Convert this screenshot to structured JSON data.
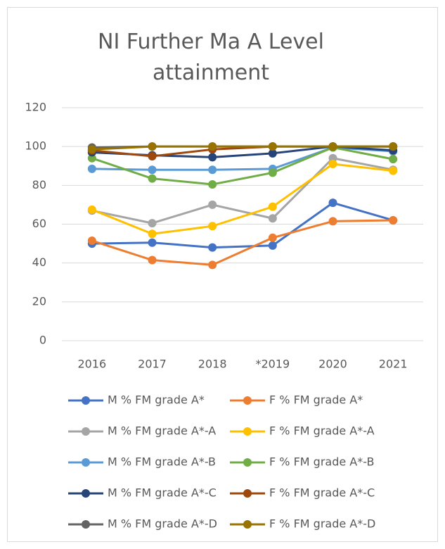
{
  "chart_data": {
    "type": "line",
    "title": "NI Further Ma A Level attainment",
    "categories": [
      "2016",
      "2017",
      "2018",
      "*2019",
      "2020",
      "2021"
    ],
    "ylim": [
      0,
      120
    ],
    "yticks": [
      0,
      20,
      40,
      60,
      80,
      100,
      120
    ],
    "grid": true,
    "series": [
      {
        "name": "M % FM grade A*",
        "color": "#4472c4",
        "values": [
          50,
          50.5,
          48,
          49,
          71,
          62
        ]
      },
      {
        "name": "F % FM grade A*",
        "color": "#ed7d31",
        "values": [
          51.5,
          41.5,
          39,
          53,
          61.5,
          62
        ]
      },
      {
        "name": "M % FM grade A*-A",
        "color": "#a5a5a5",
        "values": [
          67,
          60.5,
          70,
          63,
          94,
          88
        ]
      },
      {
        "name": "F % FM grade A*-A",
        "color": "#ffc000",
        "values": [
          67.5,
          55,
          59,
          69,
          91,
          87.5
        ]
      },
      {
        "name": "M % FM grade A*-B",
        "color": "#5b9bd5",
        "values": [
          88.5,
          88,
          88,
          88.5,
          99.5,
          97.5
        ]
      },
      {
        "name": "F % FM grade A*-B",
        "color": "#70ad47",
        "values": [
          94,
          83.5,
          80.5,
          86.5,
          99.5,
          93.5
        ]
      },
      {
        "name": "M % FM grade A*-C",
        "color": "#264478",
        "values": [
          97,
          95.5,
          94.5,
          96.5,
          100,
          98
        ]
      },
      {
        "name": "F % FM grade A*-C",
        "color": "#9e480e",
        "values": [
          98,
          95,
          98.5,
          100,
          100,
          100
        ]
      },
      {
        "name": "M % FM grade A*-D",
        "color": "#636363",
        "values": [
          99.5,
          100,
          100,
          100,
          100,
          100
        ]
      },
      {
        "name": "F % FM grade A*-D",
        "color": "#997300",
        "values": [
          98.5,
          100,
          100,
          100,
          100,
          100
        ]
      }
    ]
  }
}
